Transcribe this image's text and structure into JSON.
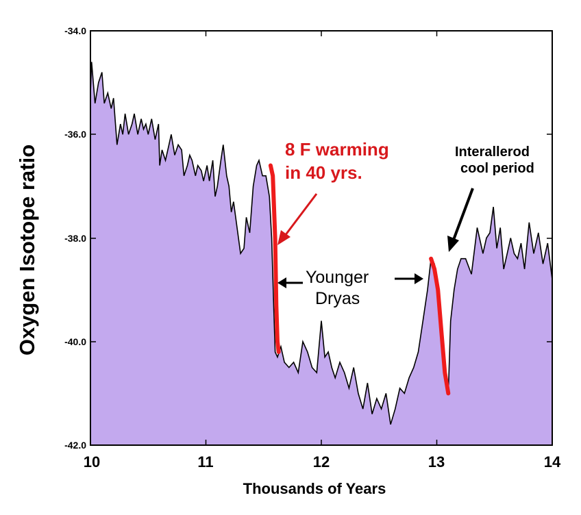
{
  "chart_data": {
    "type": "area",
    "xlabel": "Thousands of Years",
    "ylabel": "Oxygen Isotope ratio",
    "xlim": [
      10,
      14
    ],
    "ylim": [
      -42.0,
      -34.0
    ],
    "x_ticks": [
      "10",
      "11",
      "12",
      "13",
      "14"
    ],
    "y_ticks": [
      "-34.0",
      "-36.0",
      "-38.0",
      "-40.0",
      "-42.0"
    ],
    "fill_color": "#c3a9ee",
    "line_color": "#000000",
    "highlight_color": "#ee1c1c",
    "series": [
      {
        "x": [
          10.0,
          10.01,
          10.04,
          10.07,
          10.1,
          10.12,
          10.15,
          10.18,
          10.2,
          10.23,
          10.26,
          10.28,
          10.3,
          10.33,
          10.36,
          10.38,
          10.41,
          10.44,
          10.46,
          10.48,
          10.5,
          10.53,
          10.56,
          10.59,
          10.6,
          10.62,
          10.65,
          10.68,
          10.7,
          10.73,
          10.76,
          10.79,
          10.81,
          10.84,
          10.86,
          10.88,
          10.91,
          10.93,
          10.96,
          10.98,
          11.01,
          11.03,
          11.06,
          11.08,
          11.1,
          11.13,
          11.15,
          11.18,
          11.2,
          11.22,
          11.24,
          11.27,
          11.3,
          11.33,
          11.35,
          11.38,
          11.41,
          11.44,
          11.46,
          11.49,
          11.52,
          11.55,
          11.57,
          11.59,
          11.6,
          11.62,
          11.65,
          11.68,
          11.72,
          11.76,
          11.8,
          11.84,
          11.88,
          11.92,
          11.96,
          12.0,
          12.03,
          12.06,
          12.09,
          12.12,
          12.16,
          12.2,
          12.24,
          12.28,
          12.32,
          12.36,
          12.4,
          12.44,
          12.48,
          12.52,
          12.56,
          12.6,
          12.64,
          12.68,
          12.72,
          12.76,
          12.8,
          12.84,
          12.88,
          12.92,
          12.95,
          12.98,
          13.01,
          13.04,
          13.07,
          13.1,
          13.12,
          13.15,
          13.18,
          13.21,
          13.25,
          13.3,
          13.35,
          13.4,
          13.43,
          13.46,
          13.49,
          13.52,
          13.55,
          13.58,
          13.61,
          13.64,
          13.67,
          13.7,
          13.73,
          13.76,
          13.8,
          13.84,
          13.88,
          13.92,
          13.96,
          14.0
        ],
        "y": [
          -35.2,
          -34.6,
          -35.4,
          -35.0,
          -34.8,
          -35.4,
          -35.2,
          -35.5,
          -35.3,
          -36.2,
          -35.8,
          -36.0,
          -35.6,
          -36.0,
          -35.8,
          -35.6,
          -36.0,
          -35.7,
          -35.9,
          -35.8,
          -36.0,
          -35.7,
          -36.1,
          -35.8,
          -36.6,
          -36.3,
          -36.5,
          -36.2,
          -36.0,
          -36.4,
          -36.2,
          -36.3,
          -36.8,
          -36.6,
          -36.4,
          -36.5,
          -36.8,
          -36.6,
          -36.7,
          -36.9,
          -36.6,
          -36.9,
          -36.5,
          -37.2,
          -37.0,
          -36.5,
          -36.2,
          -36.8,
          -37.0,
          -37.5,
          -37.3,
          -37.8,
          -38.3,
          -38.2,
          -37.6,
          -37.9,
          -37.0,
          -36.6,
          -36.5,
          -36.8,
          -36.8,
          -37.2,
          -38.0,
          -39.5,
          -40.2,
          -40.3,
          -40.1,
          -40.4,
          -40.5,
          -40.4,
          -40.6,
          -40.0,
          -40.2,
          -40.5,
          -40.6,
          -39.6,
          -40.3,
          -40.2,
          -40.5,
          -40.7,
          -40.4,
          -40.6,
          -40.9,
          -40.5,
          -41.0,
          -41.3,
          -40.8,
          -41.4,
          -41.1,
          -41.3,
          -41.0,
          -41.6,
          -41.3,
          -40.9,
          -41.0,
          -40.7,
          -40.5,
          -40.2,
          -39.6,
          -39.0,
          -38.4,
          -38.5,
          -39.0,
          -39.8,
          -40.6,
          -41.0,
          -39.6,
          -39.0,
          -38.6,
          -38.4,
          -38.4,
          -38.7,
          -37.8,
          -38.3,
          -38.0,
          -37.9,
          -37.4,
          -38.2,
          -37.8,
          -38.6,
          -38.3,
          -38.0,
          -38.3,
          -38.4,
          -38.1,
          -38.6,
          -37.7,
          -38.3,
          -37.9,
          -38.5,
          -38.1,
          -38.8
        ]
      }
    ],
    "highlights": [
      {
        "x": [
          11.56,
          11.58,
          11.6,
          11.61,
          11.62,
          11.63
        ],
        "y": [
          -36.6,
          -36.8,
          -38.0,
          -39.3,
          -40.0,
          -40.2
        ]
      },
      {
        "x": [
          12.95,
          12.98,
          13.01,
          13.04,
          13.07,
          13.1
        ],
        "y": [
          -38.4,
          -38.6,
          -39.0,
          -39.8,
          -40.6,
          -41.0
        ]
      }
    ],
    "annotations": [
      {
        "text": "8 F warming",
        "color": "red"
      },
      {
        "text": "in 40 yrs.",
        "color": "red"
      },
      {
        "text": "Interallerod",
        "color": "black"
      },
      {
        "text": "cool period",
        "color": "black"
      },
      {
        "text": "Younger",
        "color": "black"
      },
      {
        "text": "Dryas",
        "color": "black"
      }
    ]
  }
}
